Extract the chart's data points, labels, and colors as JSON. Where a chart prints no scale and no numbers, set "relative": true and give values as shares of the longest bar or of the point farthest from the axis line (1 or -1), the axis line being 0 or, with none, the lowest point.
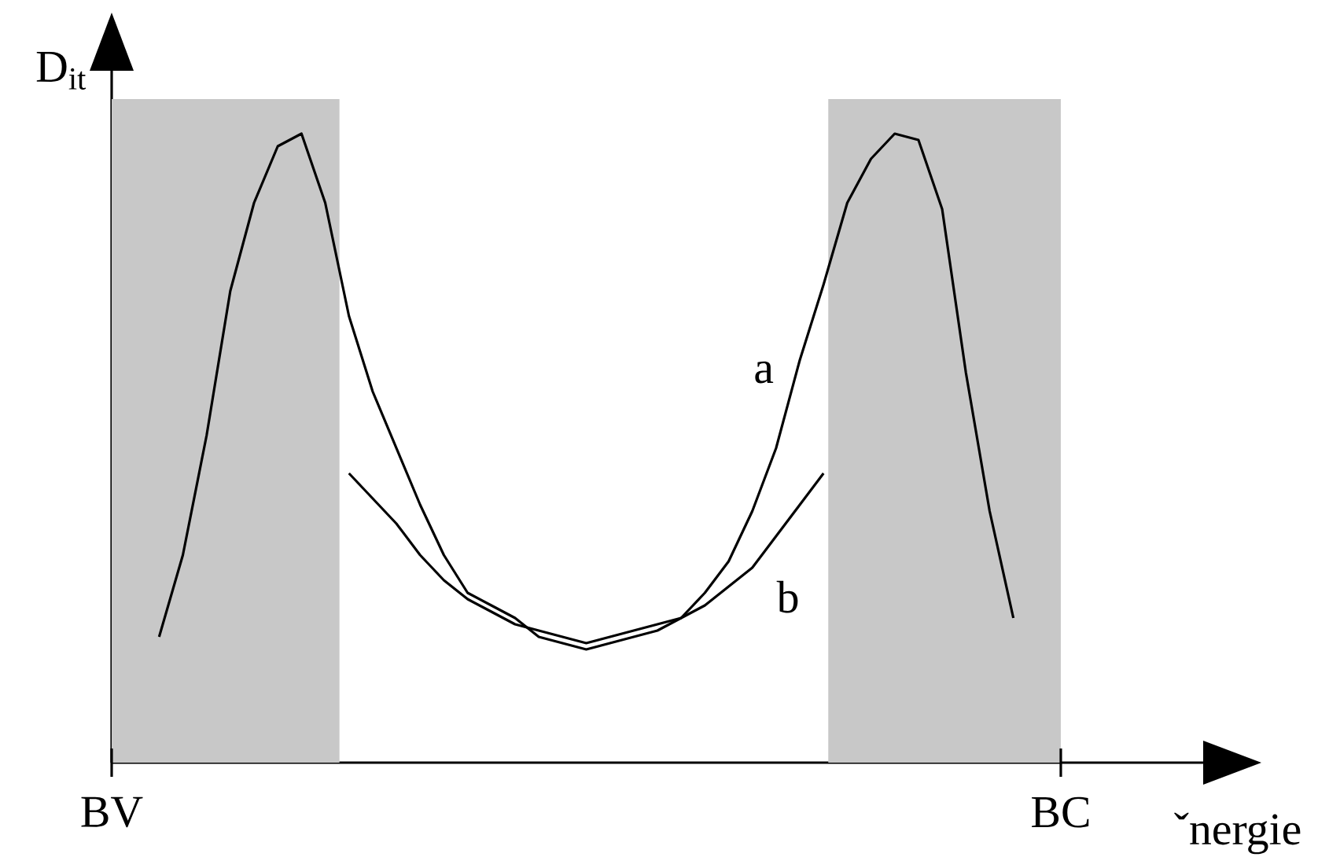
{
  "chart_data": {
    "type": "line",
    "xlabel": "ˇnergie",
    "ylabel": "D$_{it}$",
    "relative": true,
    "categories": [
      "BV",
      null,
      null,
      null,
      null,
      null,
      null,
      null,
      null,
      null,
      null,
      null,
      null,
      null,
      null,
      null,
      null,
      null,
      null,
      null,
      null,
      null,
      null,
      null,
      null,
      null,
      null,
      null,
      null,
      null,
      null,
      null,
      null,
      null,
      null,
      null,
      null,
      null,
      null,
      null,
      "BC",
      null,
      null,
      null,
      null,
      null,
      null
    ],
    "series": [
      {
        "name": "a",
        "color": "#000000",
        "values": [
          null,
          null,
          0.2,
          0.33,
          0.52,
          0.75,
          0.89,
          0.98,
          1.0,
          0.89,
          0.71,
          0.59,
          0.5,
          0.41,
          0.33,
          0.27,
          0.25,
          0.23,
          0.2,
          0.19,
          0.18,
          0.19,
          0.2,
          0.21,
          0.23,
          0.27,
          0.32,
          0.4,
          0.5,
          0.64,
          0.76,
          0.89,
          0.96,
          1.0,
          0.99,
          0.88,
          0.62,
          0.4,
          0.23,
          null,
          null,
          null,
          null,
          null,
          null,
          null,
          null
        ]
      },
      {
        "name": "b",
        "color": "#000000",
        "values": [
          null,
          null,
          null,
          null,
          null,
          null,
          null,
          null,
          null,
          null,
          0.46,
          0.42,
          0.38,
          0.33,
          0.29,
          0.26,
          0.24,
          0.22,
          0.21,
          0.2,
          0.19,
          0.2,
          0.21,
          0.22,
          0.23,
          0.25,
          0.28,
          0.31,
          0.36,
          0.41,
          0.46,
          null,
          null,
          null,
          null,
          null,
          null,
          null,
          null,
          null,
          null,
          null,
          null,
          null,
          null,
          null,
          null
        ]
      }
    ]
  }
}
